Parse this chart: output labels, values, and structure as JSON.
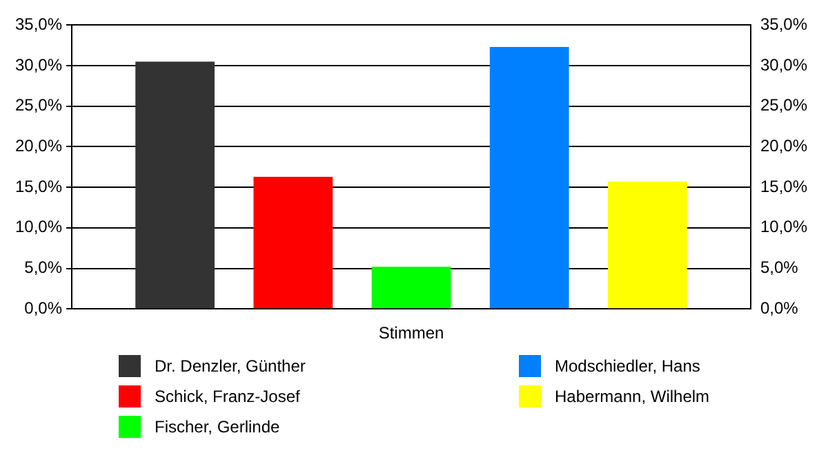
{
  "chart_data": {
    "type": "bar",
    "categories": [
      "Stimmen"
    ],
    "series": [
      {
        "name": "Dr. Denzler, Günther",
        "color": "#333333",
        "values": [
          30.5
        ]
      },
      {
        "name": "Schick, Franz-Josef",
        "color": "#ff0000",
        "values": [
          16.3
        ]
      },
      {
        "name": "Fischer, Gerlinde",
        "color": "#00ff00",
        "values": [
          5.2
        ]
      },
      {
        "name": "Modschiedler, Hans",
        "color": "#0080ff",
        "values": [
          32.3
        ]
      },
      {
        "name": "Habermann, Wilhelm",
        "color": "#ffff00",
        "values": [
          15.7
        ]
      }
    ],
    "ylim": [
      0,
      35
    ],
    "yticks": [
      {
        "value": 0,
        "label": "0,0%"
      },
      {
        "value": 5,
        "label": "5,0%"
      },
      {
        "value": 10,
        "label": "10,0%"
      },
      {
        "value": 15,
        "label": "15,0%"
      },
      {
        "value": 20,
        "label": "20,0%"
      },
      {
        "value": 25,
        "label": "25,0%"
      },
      {
        "value": 30,
        "label": "30,0%"
      },
      {
        "value": 35,
        "label": "35,0%"
      }
    ],
    "grid": "y",
    "legend": "bottom"
  }
}
